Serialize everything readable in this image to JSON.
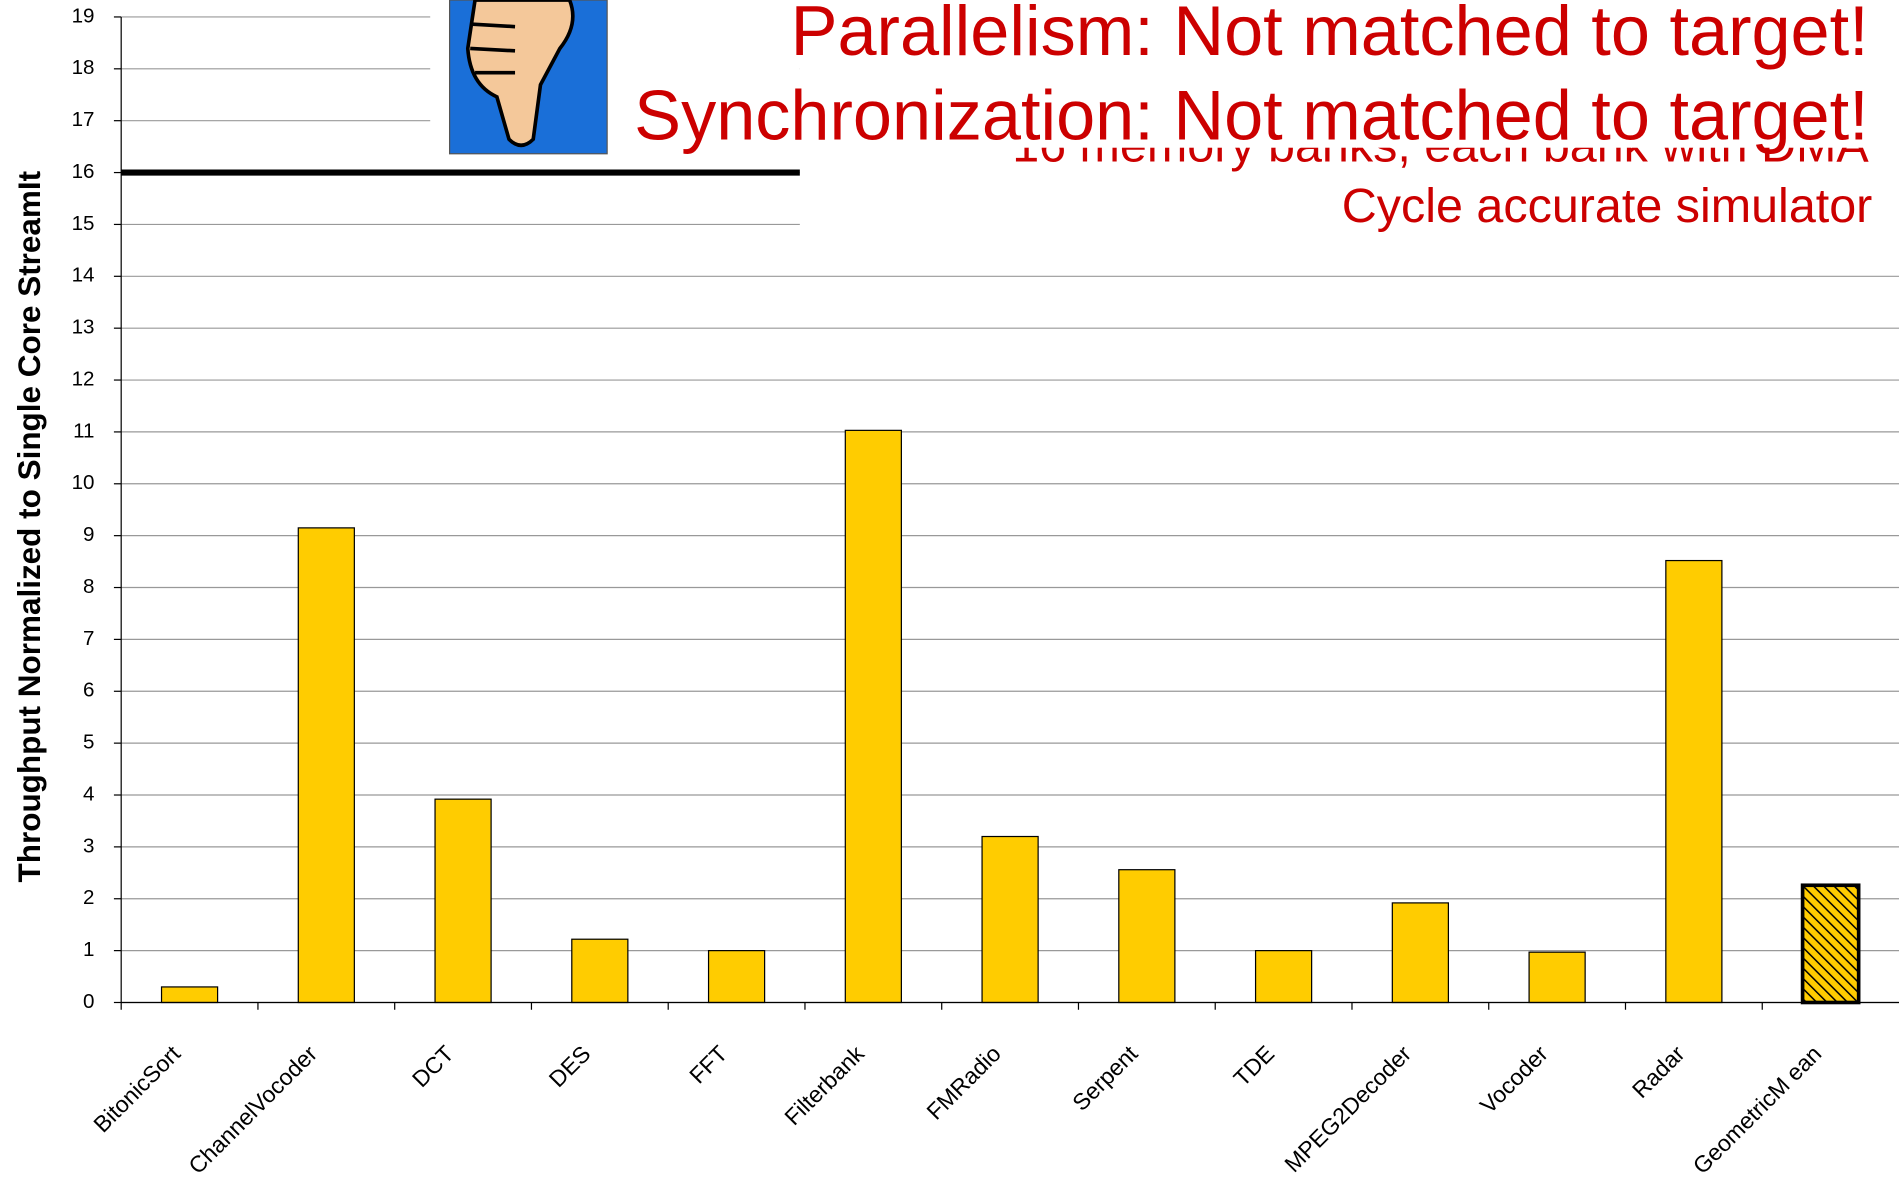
{
  "chart_data": {
    "type": "bar",
    "y_label": "Throughput Normalized to Single Core StreamIt",
    "annotations": [
      "Parallelism: Not matched to target!",
      "Synchronization: Not matched to target!",
      "16 memory banks, each bank with DMA",
      "Cycle accurate simulator"
    ],
    "categories": [
      "BitonicSort",
      "ChannelVocoder",
      "DCT",
      "DES",
      "FFT",
      "Filterbank",
      "FMRadio",
      "Serpent",
      "TDE",
      "MPEG2Decoder",
      "Vocoder",
      "Radar",
      "GeometricM ean"
    ],
    "values": [
      0.3,
      9.15,
      3.92,
      1.22,
      1.0,
      11.03,
      3.2,
      2.56,
      1.0,
      1.92,
      0.97,
      8.52,
      2.26
    ],
    "color": "#ffcc00",
    "hatched_index": 12,
    "target_line": 16,
    "ylim": [
      0,
      19
    ],
    "yticks": [
      0,
      1,
      2,
      3,
      4,
      5,
      6,
      7,
      8,
      9,
      10,
      11,
      12,
      13,
      14,
      15,
      16,
      17,
      18,
      19
    ],
    "grid": true
  }
}
